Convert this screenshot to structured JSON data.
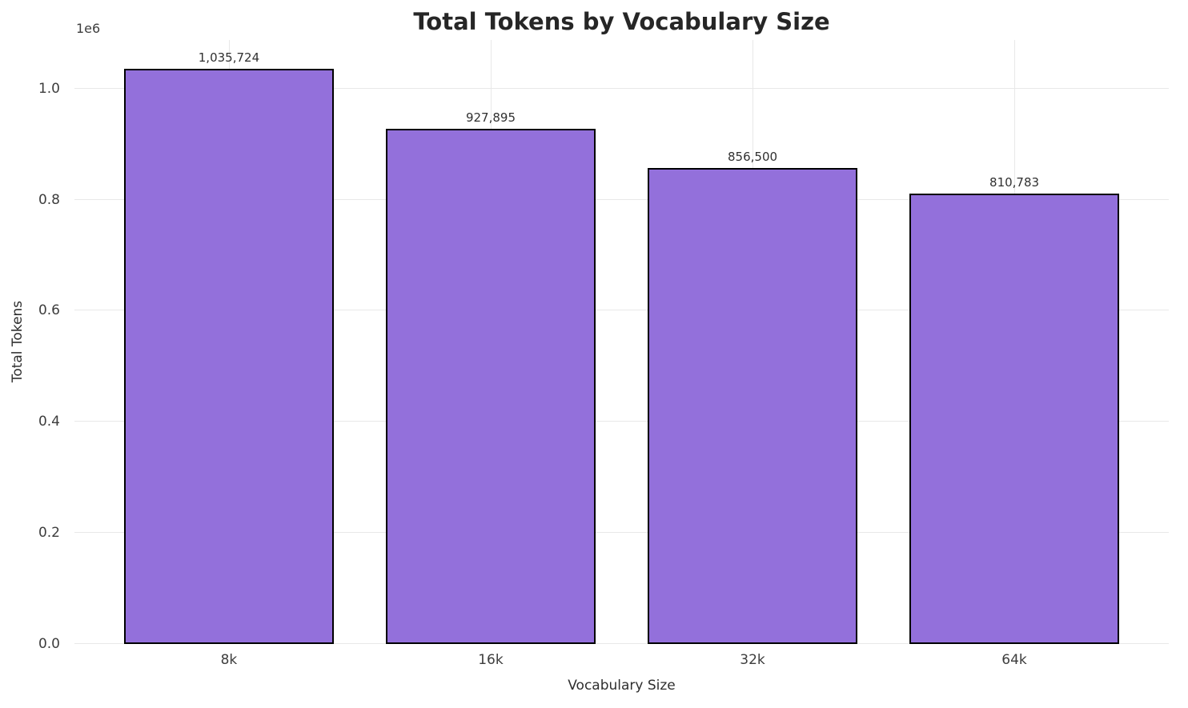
{
  "chart_data": {
    "type": "bar",
    "title": "Total Tokens by Vocabulary Size",
    "xlabel": "Vocabulary Size",
    "ylabel": "Total Tokens",
    "y_offset_label": "1e6",
    "categories": [
      "8k",
      "16k",
      "32k",
      "64k"
    ],
    "values": [
      1035724,
      927895,
      856500,
      810783
    ],
    "value_labels": [
      "1,035,724",
      "927,895",
      "856,500",
      "810,783"
    ],
    "yticks": [
      0,
      200000,
      400000,
      600000,
      800000,
      1000000
    ],
    "ytick_labels": [
      "0.0",
      "0.2",
      "0.4",
      "0.6",
      "0.8",
      "1.0"
    ],
    "ylim": [
      0,
      1087510
    ],
    "grid": true,
    "legend": "none",
    "bar_color": "#9370DB",
    "bar_edge_color": "#000000",
    "grid_color": "#e8e8e8",
    "background_color": "#ffffff"
  }
}
